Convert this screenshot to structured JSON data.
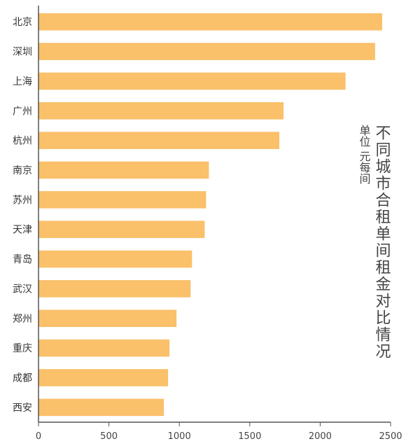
{
  "colors": {
    "bar": "#FAC06A",
    "axis": "#555555",
    "text": "#333333"
  },
  "chart_data": {
    "type": "bar",
    "orientation": "horizontal",
    "title": "不同城市合租单间租金对比情况",
    "subtitle": "单位 元每间",
    "xlim": [
      0,
      2500
    ],
    "x_ticks": [
      "0",
      "500",
      "1000",
      "1500",
      "2000",
      "2500"
    ],
    "grid": false,
    "categories": [
      "北京",
      "深圳",
      "上海",
      "广州",
      "杭州",
      "南京",
      "苏州",
      "天津",
      "青岛",
      "武汉",
      "郑州",
      "重庆",
      "成都",
      "西安"
    ],
    "values": [
      2440,
      2390,
      2180,
      1740,
      1710,
      1210,
      1190,
      1180,
      1090,
      1080,
      980,
      930,
      920,
      890
    ]
  }
}
